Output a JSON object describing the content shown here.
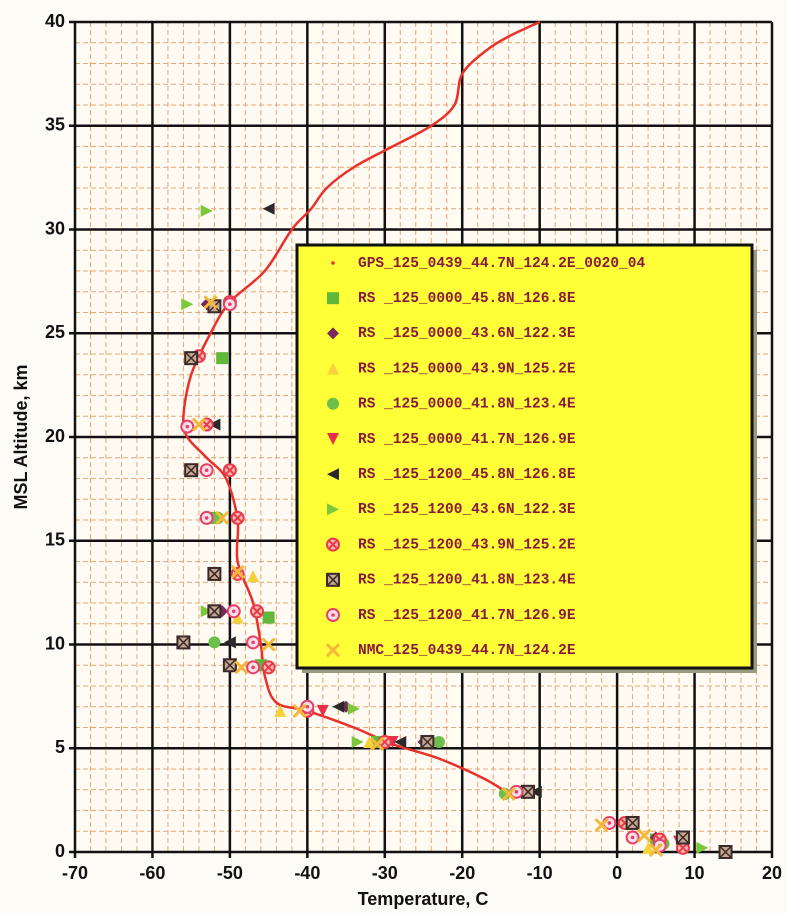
{
  "chart_data": {
    "type": "scatter",
    "x_label": "Temperature, C",
    "y_label": "MSL Altitude, km",
    "xlim": [
      -70,
      20
    ],
    "xticks": [
      -70,
      -60,
      -50,
      -40,
      -30,
      -20,
      -10,
      0,
      10,
      20
    ],
    "ylim": [
      0,
      40
    ],
    "yticks": [
      0,
      5,
      10,
      15,
      20,
      25,
      30,
      35,
      40
    ],
    "grid": true,
    "minor_grid": true,
    "legend": "center right",
    "series": [
      {
        "name": "GPS_125_0439_44.7N_124.2E_0020_04",
        "type": "line",
        "color": "#e8312a",
        "marker": "dot",
        "x": [
          -14,
          -17,
          -23,
          -29,
          -34,
          -40,
          -44,
          -45.5,
          -46,
          -47,
          -49,
          -49,
          -50.5,
          -53,
          -55.5,
          -56,
          -55,
          -52.5,
          -50,
          -45.5,
          -42,
          -39.5,
          -37.5,
          -34,
          -29,
          -24,
          -21,
          -20,
          -17,
          -14,
          -10
        ],
        "y": [
          2.8,
          3.5,
          4.5,
          5.2,
          6,
          6.8,
          7.2,
          8.5,
          10,
          12,
          14,
          16,
          18,
          19,
          20,
          21,
          23,
          25,
          26.5,
          28,
          30,
          31,
          32,
          33,
          34,
          35,
          36,
          37.5,
          38.6,
          39.3,
          40
        ]
      },
      {
        "name": "RS _125_0000_45.8N_126.8E",
        "type": "scatter",
        "color": "#5fb83a",
        "marker": "square",
        "x": [
          -51,
          -52,
          -45,
          -46,
          -31,
          5
        ],
        "y": [
          23.8,
          16.1,
          11.3,
          9,
          5.3,
          0.6
        ]
      },
      {
        "name": "RS _125_0000_43.6N_122.3E",
        "type": "scatter",
        "color": "#7a2a5a",
        "marker": "diamond",
        "x": [
          -53,
          -51,
          -35,
          -25,
          5
        ],
        "y": [
          26.4,
          11.6,
          7,
          5.3,
          0.7
        ]
      },
      {
        "name": "RS _125_0000_43.9N_125.2E",
        "type": "scatter",
        "color": "#f5d23a",
        "marker": "triangle-up",
        "x": [
          -52,
          -47,
          -49,
          -43.5,
          -32,
          4
        ],
        "y": [
          26.6,
          13.3,
          11.3,
          6.8,
          5.3,
          0.2
        ]
      },
      {
        "name": "RS _125_0000_41.8N_123.4E",
        "type": "scatter",
        "color": "#6cc04a",
        "marker": "circle",
        "x": [
          -51.5,
          -52,
          -23,
          -14.5,
          6
        ],
        "y": [
          16.1,
          10.1,
          5.3,
          2.8,
          0.4
        ]
      },
      {
        "name": "RS _125_0000_41.7N_126.9E",
        "type": "scatter",
        "color": "#e8304a",
        "marker": "triangle-down",
        "x": [
          -38,
          -29,
          8
        ],
        "y": [
          6.8,
          5.3,
          0.5
        ]
      },
      {
        "name": "RS _125_1200_45.8N_126.8E",
        "type": "scatter",
        "color": "#2a2a2a",
        "marker": "triangle-left",
        "x": [
          -45,
          -52,
          -50,
          -36,
          -28,
          -10.5
        ],
        "y": [
          31,
          20.6,
          10.1,
          7,
          5.3,
          2.9
        ]
      },
      {
        "name": "RS _125_1200_43.6N_122.3E",
        "type": "scatter",
        "color": "#7cc83a",
        "marker": "triangle-right",
        "x": [
          -53,
          -55.5,
          -53,
          -34,
          -33.5,
          11
        ],
        "y": [
          30.9,
          26.4,
          11.6,
          6.9,
          5.3,
          0.2
        ]
      },
      {
        "name": "RS _125_1200_43.9N_125.2E",
        "type": "scatter",
        "color": "#e83a4a",
        "marker": "circle-x",
        "x": [
          -50,
          -54,
          -53,
          -50,
          -49,
          -49,
          -46.5,
          -45,
          -40,
          -30,
          -12,
          1,
          5.5,
          8.5
        ],
        "y": [
          26.5,
          23.9,
          20.6,
          18.4,
          16.1,
          13.4,
          11.6,
          8.9,
          6.8,
          5.3,
          2.9,
          1.4,
          0.6,
          0.2
        ]
      },
      {
        "name": "RS _125_1200_41.8N_123.4E",
        "type": "scatter",
        "color": "#3a2a2a",
        "marker": "square-x",
        "x": [
          -52,
          -55,
          -55,
          -52,
          -52,
          -56,
          -50,
          -24.5,
          -11.5,
          2,
          8.5,
          14
        ],
        "y": [
          26.3,
          23.8,
          18.4,
          13.4,
          11.6,
          10.1,
          9,
          5.3,
          2.9,
          1.4,
          0.7,
          0
        ]
      },
      {
        "name": "RS _125_1200_41.7N_126.9E",
        "type": "scatter",
        "color": "#e8406a",
        "marker": "circle-dot",
        "x": [
          -50,
          -55.5,
          -53,
          -53,
          -49.5,
          -47,
          -47,
          -40,
          -13,
          -1,
          2,
          5.5
        ],
        "y": [
          26.4,
          20.5,
          18.4,
          16.1,
          11.6,
          10.1,
          8.9,
          7,
          2.9,
          1.4,
          0.7,
          0.3
        ]
      },
      {
        "name": "NMC_125_0439_44.7N_124.2E",
        "type": "scatter",
        "color": "#f5b83a",
        "marker": "x",
        "x": [
          -52.5,
          -54,
          -51,
          -49,
          -45,
          -48.5,
          -41,
          -31,
          -14,
          -2,
          3.5,
          5
        ],
        "y": [
          26.5,
          20.6,
          16.1,
          13.5,
          10,
          8.9,
          6.8,
          5.2,
          2.8,
          1.3,
          0.8,
          0.1
        ]
      }
    ]
  }
}
